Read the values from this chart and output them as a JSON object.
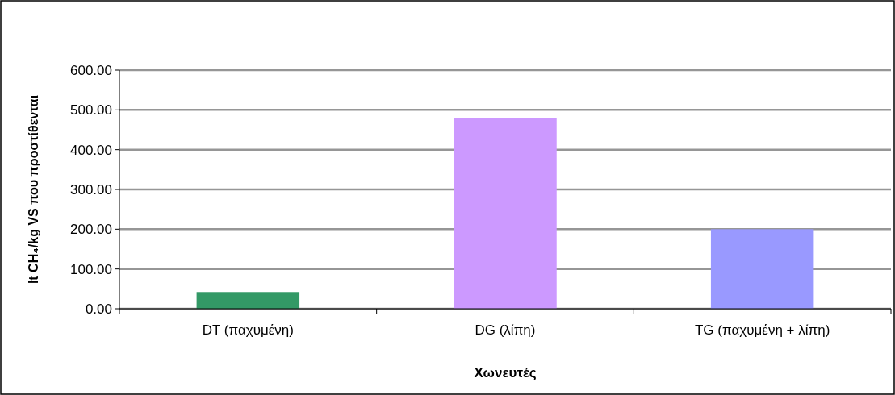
{
  "chart_data": {
    "type": "bar",
    "xlabel": "Χωνευτές",
    "ylabel": "lt CH₄/kg VS που προστίθενται",
    "categories": [
      "DT (παχυμένη)",
      "DG (λίπη)",
      "TG (παχυμένη + λίπη)"
    ],
    "values": [
      42,
      480,
      200
    ],
    "colors": [
      "#339966",
      "#cc99ff",
      "#9999ff"
    ],
    "ylim": [
      0,
      600
    ],
    "yticks": [
      {
        "value": 0,
        "label": "0.00"
      },
      {
        "value": 100,
        "label": "100.00"
      },
      {
        "value": 200,
        "label": "200.00"
      },
      {
        "value": 300,
        "label": "300.00"
      },
      {
        "value": 400,
        "label": "400.00"
      },
      {
        "value": 500,
        "label": "500.00"
      },
      {
        "value": 600,
        "label": "600.00"
      }
    ],
    "grid": "y"
  }
}
